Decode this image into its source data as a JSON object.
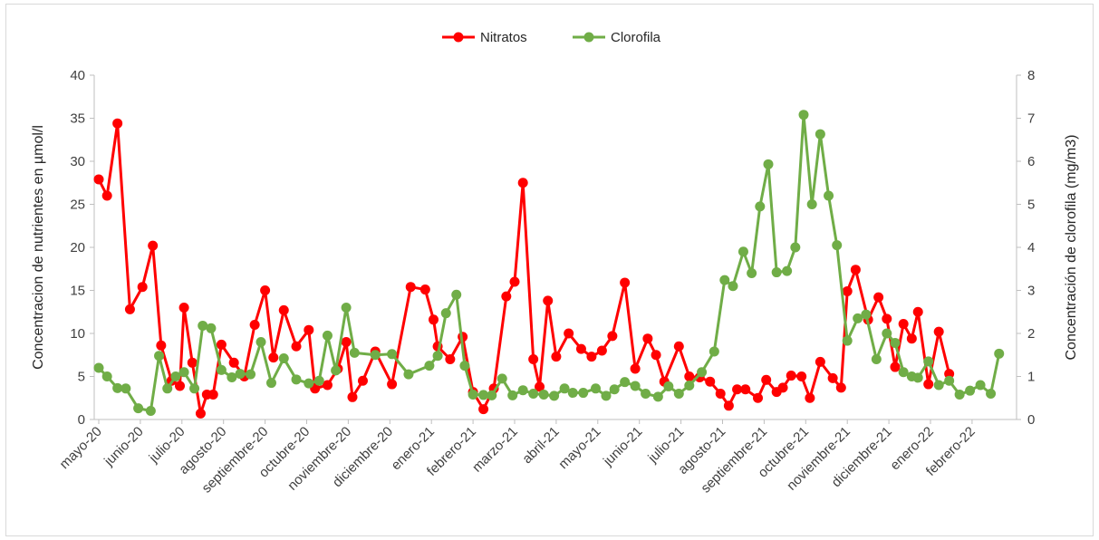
{
  "chart_data": {
    "type": "line",
    "title": "",
    "legend_position": "top",
    "grid": false,
    "x_labels": [
      "mayo-20",
      "junio-20",
      "julio-20",
      "agosto-20",
      "septiembre-20",
      "octubre-20",
      "noviembre-20",
      "diciembre-20",
      "enero-21",
      "febrero-21",
      "marzo-21",
      "abril-21",
      "mayo-21",
      "junio-21",
      "julio-21",
      "agosto-21",
      "septiembre-21",
      "octubre-21",
      "noviembre-21",
      "diciembre-21",
      "enero-22",
      "febrero-22"
    ],
    "y_left": {
      "label": "Concentracion de nutrientes  en µmol/l",
      "min": 0,
      "max": 40,
      "step": 5,
      "ticks": [
        "0",
        "5",
        "10",
        "15",
        "20",
        "25",
        "30",
        "35",
        "40"
      ]
    },
    "y_right": {
      "label": "Concentración de clorofila (mg/m3)",
      "min": 0,
      "max": 8,
      "step": 1,
      "ticks": [
        "0",
        "1",
        "2",
        "3",
        "4",
        "5",
        "6",
        "7",
        "8"
      ]
    },
    "series": [
      {
        "name": "Nitratos",
        "axis": "left",
        "color": "#ff0000",
        "x": [
          0,
          0.2,
          0.45,
          0.75,
          1.05,
          1.3,
          1.5,
          1.75,
          1.95,
          2.05,
          2.25,
          2.45,
          2.6,
          2.75,
          2.95,
          3.25,
          3.5,
          3.75,
          4.0,
          4.2,
          4.45,
          4.75,
          5.05,
          5.2,
          5.5,
          5.75,
          5.95,
          6.1,
          6.35,
          6.65,
          7.05,
          7.5,
          7.85,
          8.05,
          8.15,
          8.45,
          8.75,
          9.0,
          9.25,
          9.5,
          9.8,
          10.0,
          10.2,
          10.45,
          10.6,
          10.8,
          11.0,
          11.3,
          11.6,
          11.85,
          12.1,
          12.35,
          12.65,
          12.9,
          13.2,
          13.4,
          13.6,
          13.95,
          14.2,
          14.45,
          14.7,
          14.95,
          15.15,
          15.35,
          15.55,
          15.85,
          16.05,
          16.3,
          16.45,
          16.65,
          16.9,
          17.1,
          17.35,
          17.65,
          17.85,
          18.0,
          18.2,
          18.5,
          18.75,
          18.95,
          19.15,
          19.35,
          19.55,
          19.7,
          19.95,
          20.2,
          20.45,
          20.7,
          20.9,
          21.1,
          21.3,
          21.45,
          21.7,
          21.95,
          22.05
        ],
        "values": [
          27.9,
          26.0,
          34.4,
          12.8,
          15.4,
          20.2,
          8.6,
          4.5,
          3.9,
          13.0,
          6.6,
          0.7,
          2.9,
          2.9,
          8.7,
          6.6,
          5.0,
          11.0,
          15.0,
          7.2,
          12.7,
          8.5,
          10.4,
          3.6,
          4.0,
          5.9,
          9.0,
          2.6,
          4.5,
          7.9,
          4.1,
          15.4,
          15.1,
          11.6,
          8.5,
          7.0,
          9.6,
          3.2,
          1.2,
          3.6,
          14.3,
          16.0,
          27.5,
          7.0,
          3.8,
          13.8,
          7.3,
          10.0,
          8.2,
          7.3,
          8.0,
          9.7,
          15.9,
          5.9,
          9.4,
          7.5,
          4.4,
          8.5,
          5.0,
          4.9,
          4.4,
          3.0,
          1.6,
          3.5,
          3.5,
          2.5,
          4.6,
          3.2,
          3.7,
          5.1,
          5.0,
          2.5,
          6.7,
          4.8,
          3.7,
          14.9,
          17.4,
          11.6,
          14.2,
          11.7,
          6.1,
          11.1,
          9.4,
          12.5,
          4.1,
          10.2,
          5.3,
          null,
          null,
          null,
          null,
          null,
          null,
          null,
          null
        ],
        "marker": "circle"
      },
      {
        "name": "Clorofila",
        "axis": "right",
        "color": "#70ad47",
        "x": [
          0,
          0.2,
          0.45,
          0.65,
          0.95,
          1.25,
          1.45,
          1.65,
          1.85,
          2.05,
          2.3,
          2.5,
          2.7,
          2.95,
          3.2,
          3.4,
          3.65,
          3.9,
          4.15,
          4.45,
          4.75,
          5.05,
          5.3,
          5.5,
          5.7,
          5.95,
          6.15,
          6.65,
          7.05,
          7.45,
          7.95,
          8.15,
          8.35,
          8.6,
          8.8,
          9.0,
          9.25,
          9.45,
          9.7,
          9.95,
          10.2,
          10.45,
          10.7,
          10.95,
          11.2,
          11.4,
          11.65,
          11.95,
          12.2,
          12.4,
          12.65,
          12.9,
          13.15,
          13.45,
          13.7,
          13.95,
          14.2,
          14.5,
          14.8,
          15.05,
          15.25,
          15.5,
          15.7,
          15.9,
          16.1,
          16.3,
          16.55,
          16.75,
          16.95,
          17.15,
          17.35,
          17.55,
          17.75,
          18.0,
          18.25,
          18.45,
          18.7,
          18.95,
          19.15,
          19.35,
          19.55,
          19.7,
          19.95,
          20.2,
          20.45,
          20.7,
          20.95,
          21.2,
          21.45,
          21.65,
          21.9,
          22.05
        ],
        "values": [
          1.2,
          1.0,
          0.73,
          0.72,
          0.26,
          0.2,
          1.48,
          0.72,
          1.0,
          1.1,
          0.72,
          2.18,
          2.12,
          1.15,
          0.98,
          1.06,
          1.05,
          1.8,
          0.85,
          1.42,
          0.93,
          0.84,
          0.9,
          1.95,
          1.14,
          2.6,
          1.55,
          1.5,
          1.52,
          1.05,
          1.25,
          1.48,
          2.47,
          2.9,
          1.25,
          0.58,
          0.57,
          0.56,
          0.95,
          0.56,
          0.68,
          0.6,
          0.58,
          0.55,
          0.72,
          0.62,
          0.62,
          0.72,
          0.55,
          0.7,
          0.87,
          0.78,
          0.6,
          0.53,
          0.77,
          0.6,
          0.79,
          1.1,
          1.58,
          3.24,
          3.1,
          3.9,
          3.4,
          4.95,
          5.93,
          3.42,
          3.45,
          4.0,
          7.08,
          5.0,
          6.63,
          5.2,
          4.05,
          1.83,
          2.35,
          2.44,
          1.4,
          2.0,
          1.78,
          1.1,
          1.0,
          0.97,
          1.35,
          0.8,
          0.9,
          0.58,
          0.67,
          0.8,
          0.6,
          1.53,
          null,
          null
        ],
        "marker": "circle"
      }
    ]
  }
}
